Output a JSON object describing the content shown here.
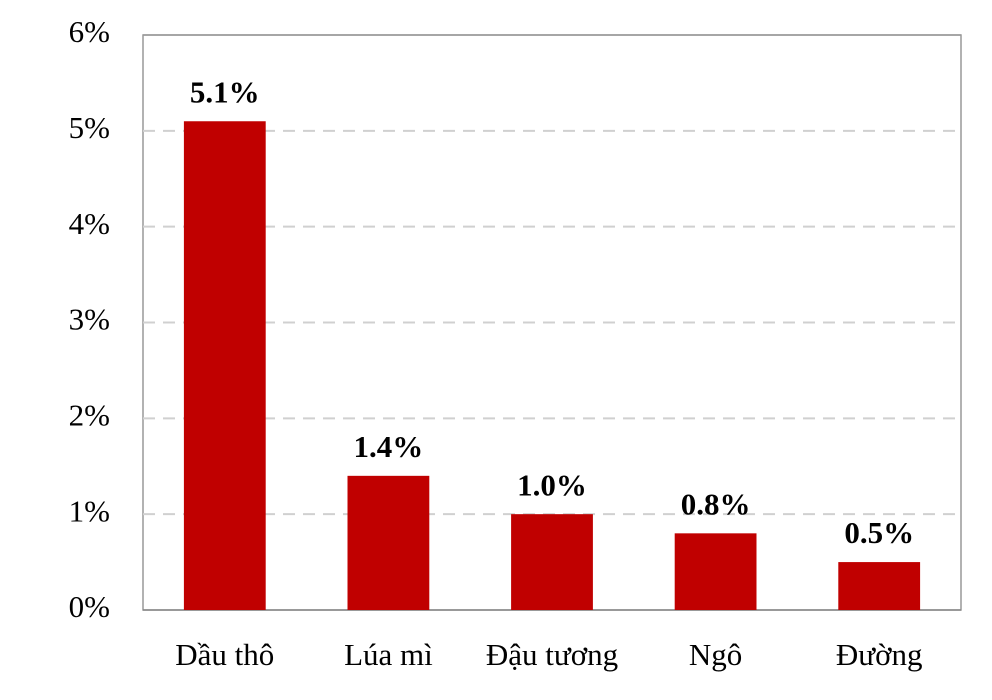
{
  "chart_data": {
    "type": "bar",
    "categories": [
      "Dầu thô",
      "Lúa mì",
      "Đậu tương",
      "Ngô",
      "Đường"
    ],
    "values": [
      5.1,
      1.4,
      1.0,
      0.8,
      0.5
    ],
    "value_labels": [
      "5.1%",
      "1.4%",
      "1.0%",
      "0.8%",
      "0.5%"
    ],
    "color": "#c00000",
    "ylim": [
      0,
      6
    ],
    "yticks": [
      {
        "value": 0,
        "label": "0%"
      },
      {
        "value": 1,
        "label": "1%"
      },
      {
        "value": 2,
        "label": "2%"
      },
      {
        "value": 3,
        "label": "3%"
      },
      {
        "value": 4,
        "label": "4%"
      },
      {
        "value": 5,
        "label": "5%"
      },
      {
        "value": 6,
        "label": "6%"
      }
    ],
    "grid": true
  }
}
